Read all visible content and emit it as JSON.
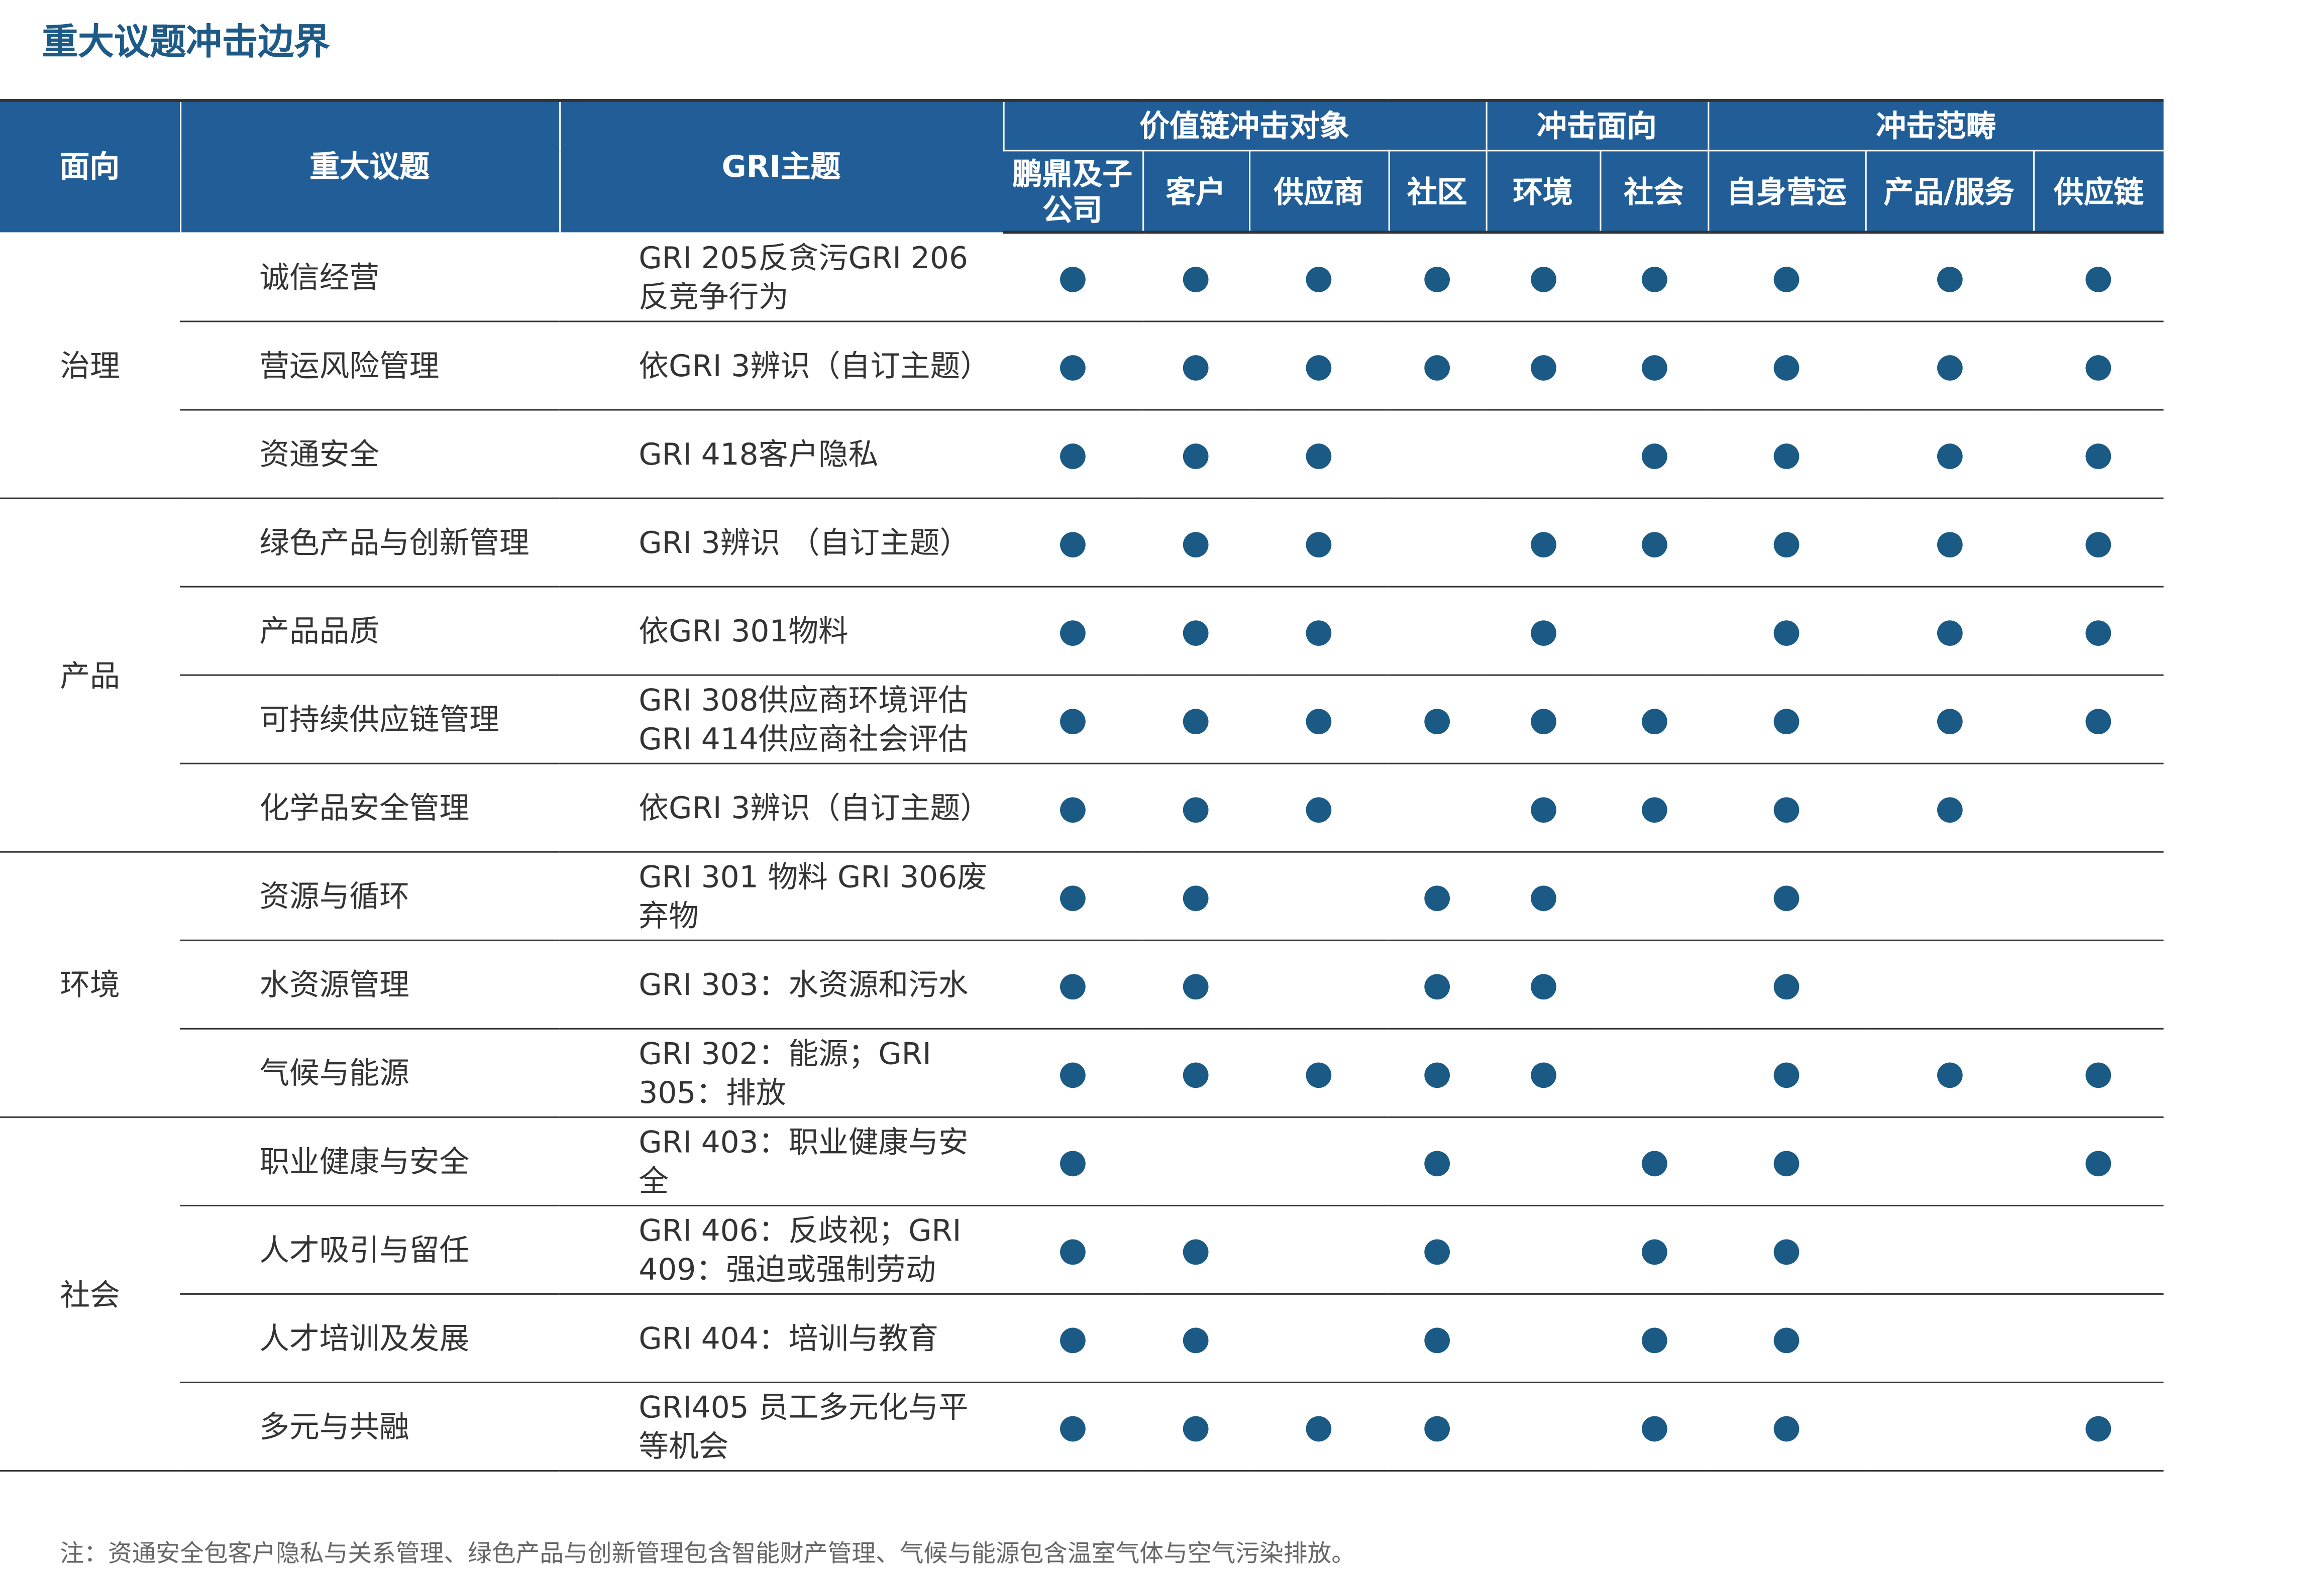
{
  "title": "重大议题冲击边界",
  "header": {
    "columns": [
      "面向",
      "重大议题",
      "GRI主题"
    ],
    "groups": [
      {
        "label": "价值链冲击对象",
        "columns": [
          "鹏鼎及子公司",
          "客户",
          "供应商",
          "社区"
        ]
      },
      {
        "label": "冲击面向",
        "columns": [
          "环境",
          "社会"
        ]
      },
      {
        "label": "冲击范畴",
        "columns": [
          "自身营运",
          "产品/服务",
          "供应链"
        ]
      }
    ]
  },
  "sections": [
    {
      "name": "治理",
      "rows": [
        {
          "topic": "诚信经营",
          "gri": "GRI 205反贪污GRI 206反竞争行为",
          "dots": [
            true,
            true,
            true,
            true,
            true,
            true,
            true,
            true,
            true
          ]
        },
        {
          "topic": "营运风险管理",
          "gri": "依GRI 3辨识（自订主题）",
          "dots": [
            true,
            true,
            true,
            true,
            true,
            true,
            true,
            true,
            true
          ]
        },
        {
          "topic": "资通安全",
          "gri": "GRI 418客户隐私",
          "dots": [
            true,
            true,
            true,
            false,
            false,
            true,
            true,
            true,
            true
          ]
        }
      ]
    },
    {
      "name": "产品",
      "rows": [
        {
          "topic": "绿色产品与创新管理",
          "gri": "GRI 3辨识 （自订主题）",
          "dots": [
            true,
            true,
            true,
            false,
            true,
            true,
            true,
            true,
            true
          ]
        },
        {
          "topic": "产品品质",
          "gri": "依GRI 301物料",
          "dots": [
            true,
            true,
            true,
            false,
            true,
            false,
            true,
            true,
            true
          ]
        },
        {
          "topic": "可持续供应链管理",
          "gri": "GRI 308供应商环境评估GRI 414供应商社会评估",
          "dots": [
            true,
            true,
            true,
            true,
            true,
            true,
            true,
            true,
            true
          ]
        },
        {
          "topic": "化学品安全管理",
          "gri": "依GRI 3辨识（自订主题）",
          "dots": [
            true,
            true,
            true,
            false,
            true,
            true,
            true,
            true,
            false
          ]
        }
      ]
    },
    {
      "name": "环境",
      "rows": [
        {
          "topic": "资源与循环",
          "gri": "GRI 301 物料 GRI 306废弃物",
          "dots": [
            true,
            true,
            false,
            true,
            true,
            false,
            true,
            false,
            false
          ]
        },
        {
          "topic": "水资源管理",
          "gri": "GRI 303：水资源和污水",
          "dots": [
            true,
            true,
            false,
            true,
            true,
            false,
            true,
            false,
            false
          ]
        },
        {
          "topic": "气候与能源",
          "gri": "GRI 302：能源；GRI 305：排放",
          "dots": [
            true,
            true,
            true,
            true,
            true,
            false,
            true,
            true,
            true
          ]
        }
      ]
    },
    {
      "name": "社会",
      "rows": [
        {
          "topic": "职业健康与安全",
          "gri": "GRI 403：职业健康与安全",
          "dots": [
            true,
            false,
            false,
            true,
            false,
            true,
            true,
            false,
            true
          ]
        },
        {
          "topic": "人才吸引与留任",
          "gri": "GRI 406：反歧视；GRI 409：强迫或强制劳动",
          "dots": [
            true,
            true,
            false,
            true,
            false,
            true,
            true,
            false,
            false
          ]
        },
        {
          "topic": "人才培训及发展",
          "gri": "GRI 404：培训与教育",
          "dots": [
            true,
            true,
            false,
            true,
            false,
            true,
            true,
            false,
            false
          ]
        },
        {
          "topic": "多元与共融",
          "gri": "GRI405 员工多元化与平等机会",
          "dots": [
            true,
            true,
            true,
            true,
            false,
            true,
            true,
            false,
            true
          ]
        }
      ]
    }
  ],
  "note": "注：资通安全包客户隐私与关系管理、绿色产品与创新管理包含智能财产管理、气候与能源包含温室气体与空气污染排放。"
}
